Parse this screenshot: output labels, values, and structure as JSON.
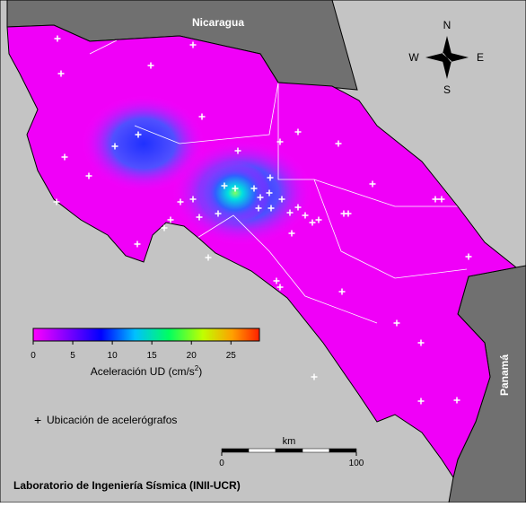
{
  "map": {
    "countries": [
      "Nicaragua",
      "Panamá"
    ],
    "compass": {
      "n": "N",
      "s": "S",
      "w": "W",
      "e": "E"
    },
    "colorbar": {
      "ticks": [
        0,
        5,
        10,
        15,
        20,
        25
      ],
      "range": [
        0,
        28.6
      ],
      "label": "Aceleración UD (cm/s",
      "label_sup": "2",
      "label_end": ")"
    },
    "legend": "Ubicación de acelerógrafos",
    "scale": {
      "unit": "km",
      "ticks": [
        0,
        100
      ]
    },
    "footer": "Laboratorio de Ingeniería Sísmica (INII-UCR)"
  }
}
